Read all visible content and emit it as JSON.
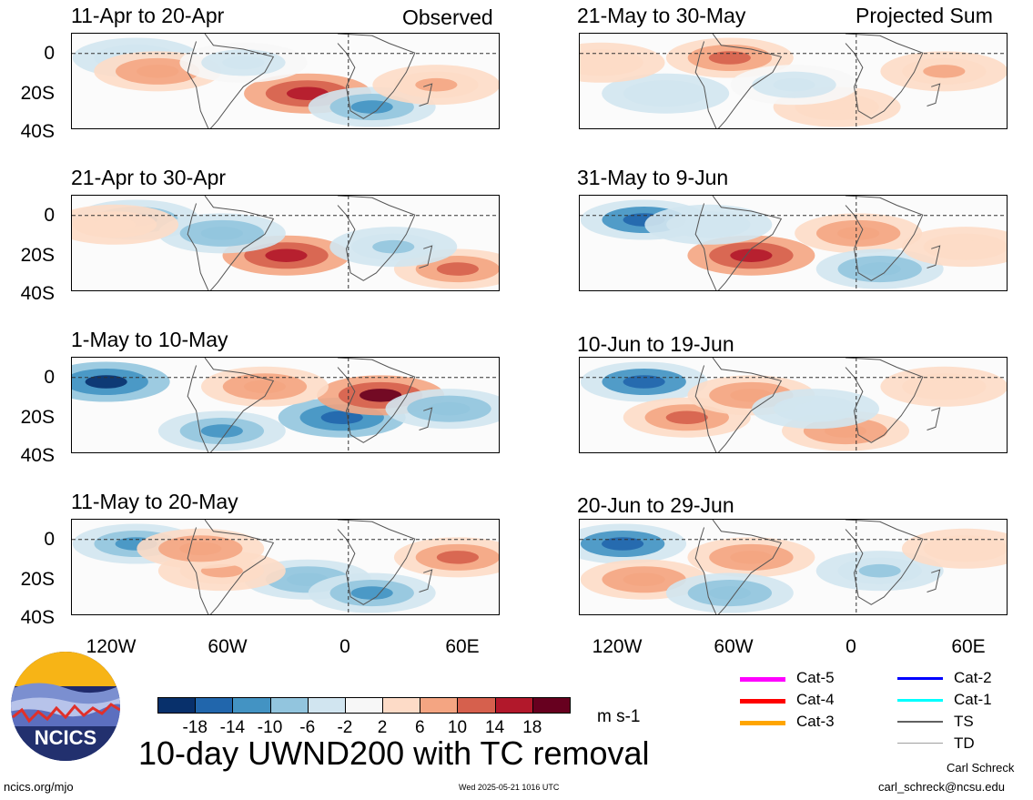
{
  "header": {
    "observed_label": "Observed",
    "projected_label": "Projected Sum"
  },
  "panels": [
    {
      "title": "11-Apr to 20-Apr",
      "pattern": [
        [
          0.15,
          -0.3
        ],
        [
          0.55,
          0.9
        ],
        [
          0.2,
          0.5
        ],
        [
          0.7,
          -0.6
        ],
        [
          0.85,
          0.4
        ],
        [
          0.4,
          -0.2
        ]
      ]
    },
    {
      "title": "21-Apr to 30-Apr",
      "pattern": [
        [
          0.15,
          -0.7
        ],
        [
          0.5,
          0.9
        ],
        [
          0.35,
          -0.5
        ],
        [
          0.9,
          0.7
        ],
        [
          0.75,
          -0.4
        ],
        [
          0.1,
          0.3
        ]
      ]
    },
    {
      "title": "1-May to 10-May",
      "pattern": [
        [
          0.08,
          -1.0
        ],
        [
          0.63,
          -0.9
        ],
        [
          0.72,
          1.0
        ],
        [
          0.35,
          -0.6
        ],
        [
          0.88,
          -0.5
        ],
        [
          0.45,
          0.5
        ]
      ]
    },
    {
      "title": "11-May to 20-May",
      "pattern": [
        [
          0.15,
          -0.6
        ],
        [
          0.55,
          -0.5
        ],
        [
          0.9,
          0.7
        ],
        [
          0.7,
          -0.6
        ],
        [
          0.35,
          0.4
        ],
        [
          0.3,
          0.5
        ]
      ]
    },
    {
      "title": "21-May to 30-May",
      "pattern": [
        [
          0.35,
          0.7
        ],
        [
          0.2,
          -0.3
        ],
        [
          0.85,
          0.4
        ],
        [
          0.6,
          0.3
        ],
        [
          0.5,
          -0.2
        ],
        [
          0.05,
          0.3
        ]
      ]
    },
    {
      "title": "31-May to 9-Jun",
      "pattern": [
        [
          0.15,
          -0.8
        ],
        [
          0.4,
          0.9
        ],
        [
          0.65,
          0.5
        ],
        [
          0.7,
          -0.5
        ],
        [
          0.9,
          0.3
        ],
        [
          0.3,
          -0.3
        ]
      ]
    },
    {
      "title": "10-Jun to 19-Jun",
      "pattern": [
        [
          0.15,
          -0.8
        ],
        [
          0.25,
          0.6
        ],
        [
          0.4,
          0.5
        ],
        [
          0.62,
          0.5
        ],
        [
          0.55,
          -0.3
        ],
        [
          0.85,
          0.3
        ]
      ]
    },
    {
      "title": "20-Jun to 29-Jun",
      "pattern": [
        [
          0.1,
          -0.8
        ],
        [
          0.15,
          0.5
        ],
        [
          0.4,
          0.5
        ],
        [
          0.35,
          -0.5
        ],
        [
          0.7,
          -0.4
        ],
        [
          0.9,
          0.3
        ]
      ]
    }
  ],
  "axes": {
    "y_ticks": [
      "0",
      "20S",
      "40S"
    ],
    "x_ticks": [
      "120W",
      "60W",
      "0",
      "60E"
    ]
  },
  "colorbar": {
    "colors": [
      "#08306b",
      "#2166ac",
      "#4393c3",
      "#92c5de",
      "#d1e5f0",
      "#f7f7f7",
      "#fddbc7",
      "#f4a582",
      "#d6604d",
      "#b2182b",
      "#67001f"
    ],
    "labels": [
      "-18",
      "-14",
      "-10",
      "-6",
      "-2",
      "2",
      "6",
      "10",
      "14",
      "18"
    ],
    "units": "m s-1"
  },
  "legend": [
    {
      "label": "Cat-5",
      "color": "#ff00ff"
    },
    {
      "label": "Cat-4",
      "color": "#ff0000"
    },
    {
      "label": "Cat-3",
      "color": "#ffa500"
    },
    {
      "label": "Cat-2",
      "color": "#0000ff"
    },
    {
      "label": "Cat-1",
      "color": "#00ffff"
    },
    {
      "label": "TS",
      "color": "#606060"
    },
    {
      "label": "TD",
      "color": "#a0a0a0"
    }
  ],
  "footer": {
    "title": "10-day UWND200 with TC removal",
    "site": "ncics.org/mjo",
    "timestamp": "Wed 2025-05-21 1016 UTC",
    "author": "Carl Schreck",
    "email": "carl_schreck@ncsu.edu",
    "logo_text": "NCICS"
  }
}
